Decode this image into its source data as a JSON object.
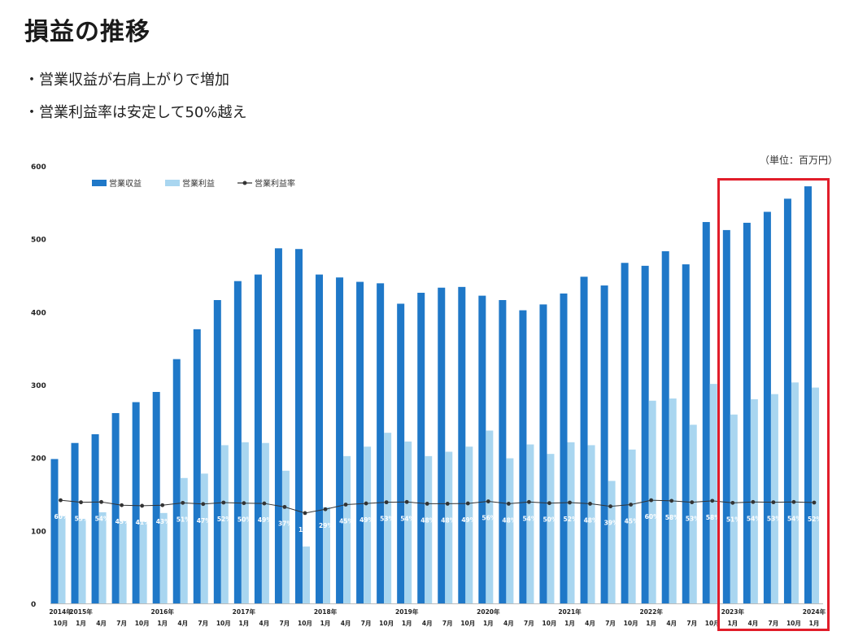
{
  "page": {
    "title": "損益の推移",
    "bullets": [
      "営業収益が右肩上がりで増加",
      "営業利益率は安定して50%越え"
    ],
    "unit": "（単位：百万円）"
  },
  "colors": {
    "revenue": "#1f78c8",
    "profit": "#a9d6f0",
    "margin_line": "#333333",
    "highlight": "#e11d2a"
  },
  "chart_data": {
    "type": "bar",
    "title": "",
    "xlabel": "",
    "ylabel": "",
    "ylim": [
      0,
      600
    ],
    "yticks": [
      "0",
      "100",
      "200",
      "300",
      "400",
      "500",
      "600"
    ],
    "legend_position": "top-left",
    "categories": [
      "10月",
      "1月",
      "4月",
      "7月",
      "10月",
      "1月",
      "4月",
      "7月",
      "10月",
      "1月",
      "4月",
      "7月",
      "10月",
      "1月",
      "4月",
      "7月",
      "10月",
      "1月",
      "4月",
      "7月",
      "10月",
      "1月",
      "4月",
      "7月",
      "10月",
      "1月",
      "4月",
      "7月",
      "10月",
      "1月",
      "4月",
      "7月",
      "10月",
      "1月",
      "4月",
      "7月",
      "10月",
      "1月"
    ],
    "year_labels": [
      "2014年",
      "2015年",
      "",
      "",
      "",
      "2016年",
      "",
      "",
      "",
      "2017年",
      "",
      "",
      "",
      "2018年",
      "",
      "",
      "",
      "2019年",
      "",
      "",
      "",
      "2020年",
      "",
      "",
      "",
      "2021年",
      "",
      "",
      "",
      "2022年",
      "",
      "",
      "",
      "2023年",
      "",
      "",
      "",
      "2024年"
    ],
    "series": [
      {
        "name": "営業収益",
        "type": "bar",
        "values": [
          198,
          220,
          232,
          261,
          276,
          290,
          335,
          376,
          416,
          442,
          451,
          487,
          486,
          451,
          447,
          441,
          439,
          411,
          426,
          433,
          434,
          422,
          416,
          402,
          410,
          425,
          448,
          436,
          467,
          463,
          483,
          465,
          523,
          512,
          522,
          537,
          555,
          572
        ]
      },
      {
        "name": "営業利益",
        "type": "bar",
        "values": [
          120,
          116,
          125,
          113,
          112,
          124,
          172,
          178,
          217,
          221,
          220,
          182,
          78,
          132,
          202,
          215,
          234,
          222,
          202,
          208,
          215,
          237,
          199,
          218,
          205,
          221,
          217,
          168,
          211,
          278,
          281,
          245,
          301,
          259,
          280,
          287,
          303,
          296
        ]
      },
      {
        "name": "営業利益率",
        "type": "line",
        "values": [
          60,
          53,
          54,
          43,
          41,
          43,
          51,
          47,
          52,
          50,
          49,
          37,
          16,
          29,
          45,
          49,
          53,
          54,
          48,
          48,
          49,
          56,
          48,
          54,
          50,
          52,
          48,
          39,
          45,
          60,
          58,
          53,
          58,
          51,
          54,
          53,
          54,
          52
        ],
        "labels": [
          "60%",
          "53%",
          "54%",
          "43%",
          "41%",
          "43%",
          "51%",
          "47%",
          "52%",
          "50%",
          "49%",
          "37%",
          "16%",
          "29%",
          "45%",
          "49%",
          "53%",
          "54%",
          "48%",
          "48%",
          "49%",
          "56%",
          "48%",
          "54%",
          "50%",
          "52%",
          "48%",
          "39%",
          "45%",
          "60%",
          "58%",
          "53%",
          "58%",
          "51%",
          "54%",
          "53%",
          "54%",
          "52%"
        ]
      }
    ]
  }
}
